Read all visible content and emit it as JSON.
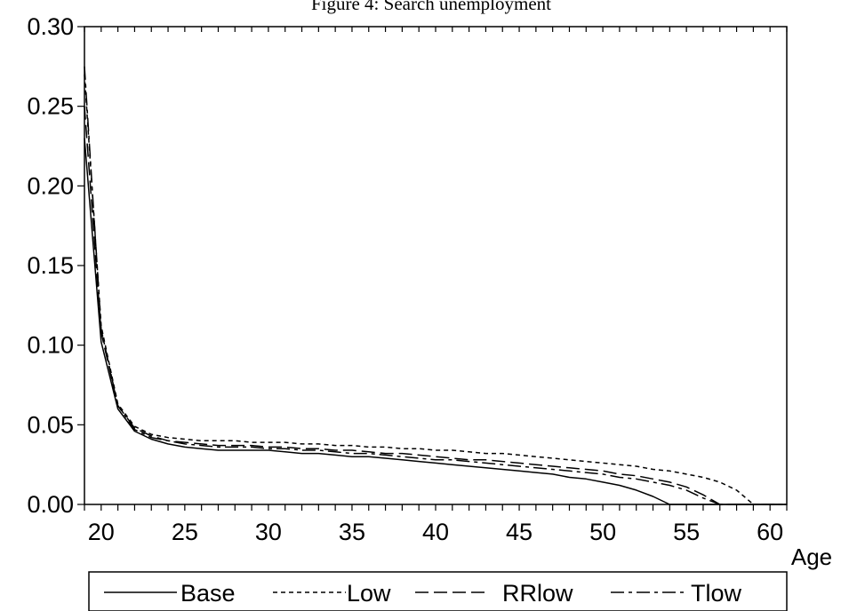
{
  "chart_data": {
    "type": "line",
    "title": "Figure 4: Search unemployment",
    "xlabel": "Age",
    "ylabel": "",
    "xlim": [
      19,
      61
    ],
    "ylim": [
      0,
      0.3
    ],
    "x_ticks": [
      20,
      25,
      30,
      35,
      40,
      45,
      50,
      55,
      60
    ],
    "y_ticks": [
      "0.00",
      "0.05",
      "0.10",
      "0.15",
      "0.20",
      "0.25",
      "0.30"
    ],
    "grid": false,
    "legend_position": "bottom",
    "x": [
      19,
      20,
      21,
      22,
      23,
      24,
      25,
      26,
      27,
      28,
      29,
      30,
      31,
      32,
      33,
      34,
      35,
      36,
      37,
      38,
      39,
      40,
      41,
      42,
      43,
      44,
      45,
      46,
      47,
      48,
      49,
      50,
      51,
      52,
      53,
      54,
      55,
      56,
      57,
      58,
      59,
      60,
      61
    ],
    "series": [
      {
        "name": "Base",
        "dash": "solid",
        "values": [
          0.23,
          0.102,
          0.06,
          0.046,
          0.041,
          0.038,
          0.036,
          0.035,
          0.034,
          0.034,
          0.034,
          0.034,
          0.033,
          0.032,
          0.032,
          0.031,
          0.03,
          0.03,
          0.029,
          0.028,
          0.027,
          0.026,
          0.025,
          0.024,
          0.023,
          0.022,
          0.021,
          0.02,
          0.019,
          0.017,
          0.016,
          0.014,
          0.012,
          0.009,
          0.005,
          0.0,
          0.0,
          0.0,
          0.0,
          0.0,
          0.0,
          0.0,
          0.0
        ]
      },
      {
        "name": "Low",
        "dash": "short",
        "values": [
          0.27,
          0.112,
          0.063,
          0.049,
          0.044,
          0.042,
          0.041,
          0.04,
          0.04,
          0.04,
          0.039,
          0.039,
          0.039,
          0.038,
          0.038,
          0.037,
          0.037,
          0.036,
          0.036,
          0.035,
          0.035,
          0.034,
          0.034,
          0.033,
          0.032,
          0.032,
          0.031,
          0.03,
          0.029,
          0.028,
          0.027,
          0.026,
          0.025,
          0.024,
          0.022,
          0.021,
          0.019,
          0.017,
          0.014,
          0.009,
          0.0,
          0.0,
          0.0
        ]
      },
      {
        "name": "RRlow",
        "dash": "long",
        "values": [
          0.25,
          0.108,
          0.062,
          0.048,
          0.043,
          0.04,
          0.039,
          0.038,
          0.037,
          0.037,
          0.037,
          0.036,
          0.036,
          0.035,
          0.035,
          0.034,
          0.034,
          0.033,
          0.032,
          0.032,
          0.031,
          0.03,
          0.029,
          0.028,
          0.028,
          0.027,
          0.026,
          0.025,
          0.024,
          0.023,
          0.022,
          0.021,
          0.019,
          0.018,
          0.016,
          0.014,
          0.011,
          0.006,
          0.0,
          0.0,
          0.0,
          0.0,
          0.0
        ]
      },
      {
        "name": "Tlow",
        "dash": "dashdot",
        "values": [
          0.275,
          0.11,
          0.062,
          0.047,
          0.042,
          0.04,
          0.038,
          0.037,
          0.036,
          0.036,
          0.036,
          0.035,
          0.035,
          0.034,
          0.034,
          0.033,
          0.032,
          0.032,
          0.031,
          0.03,
          0.029,
          0.028,
          0.028,
          0.027,
          0.026,
          0.025,
          0.024,
          0.023,
          0.022,
          0.021,
          0.02,
          0.019,
          0.017,
          0.016,
          0.014,
          0.012,
          0.009,
          0.004,
          0.0,
          0.0,
          0.0,
          0.0,
          0.0
        ]
      }
    ]
  }
}
